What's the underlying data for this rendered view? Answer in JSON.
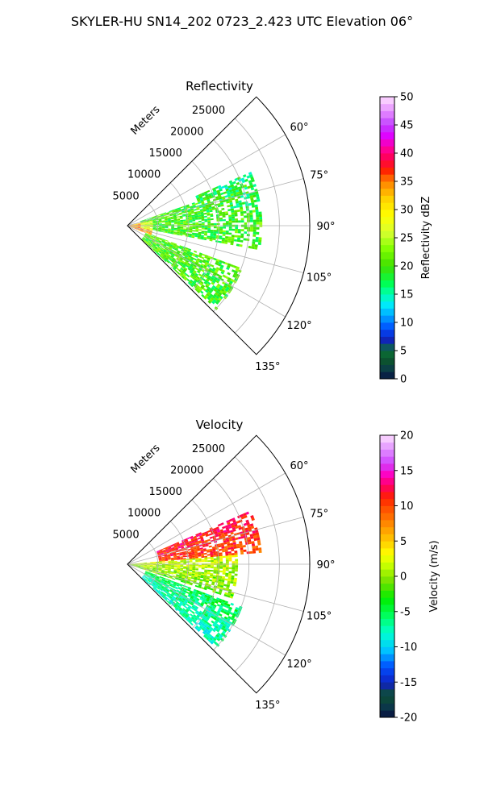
{
  "figure_title": "SKYLER-HU  SN14_202  0723_2.423 UTC Elevation 06°",
  "colors": {
    "background": "#ffffff",
    "grid": "#b0b0b0",
    "frame": "#000000"
  },
  "chart_data": [
    {
      "type": "heatmap",
      "projection": "polar-sector",
      "title": "Reflectivity",
      "radial_label": "Meters",
      "range_ticks": [
        5000,
        10000,
        15000,
        20000,
        25000
      ],
      "range_limit": [
        0,
        30000
      ],
      "azimuth_ticks": [
        "60°",
        "75°",
        "90°",
        "105°",
        "120°",
        "135°"
      ],
      "azimuth_range_deg": [
        45,
        135
      ],
      "grid": true,
      "colorbar": {
        "label": "Reflectivity dBZ",
        "range": [
          0,
          50
        ],
        "ticks": [
          0,
          5,
          10,
          15,
          20,
          25,
          30,
          35,
          40,
          45,
          50
        ],
        "colormap": "pyart_NWSRef"
      },
      "regions": [
        {
          "description": "main echo band",
          "az_deg": [
            70,
            100
          ],
          "range_m": [
            2000,
            22000
          ],
          "value_dbz": 20
        },
        {
          "description": "northern edge band",
          "az_deg": [
            66,
            80
          ],
          "range_m": [
            12000,
            22000
          ],
          "value_dbz": 17
        },
        {
          "description": "southern arm",
          "az_deg": [
            110,
            133
          ],
          "range_m": [
            3000,
            20000
          ],
          "value_dbz": 20
        },
        {
          "description": "near-radar strong echo",
          "az_deg": [
            78,
            112
          ],
          "range_m": [
            0,
            4000
          ],
          "value_dbz": 34
        }
      ]
    },
    {
      "type": "heatmap",
      "projection": "polar-sector",
      "title": "Velocity",
      "radial_label": "Meters",
      "range_ticks": [
        5000,
        10000,
        15000,
        20000,
        25000
      ],
      "range_limit": [
        0,
        30000
      ],
      "azimuth_ticks": [
        "60°",
        "75°",
        "90°",
        "105°",
        "120°",
        "135°"
      ],
      "azimuth_range_deg": [
        45,
        135
      ],
      "grid": true,
      "colorbar": {
        "label": "Velocity (m/s)",
        "range": [
          -20,
          20
        ],
        "ticks": [
          -20,
          -15,
          -10,
          -5,
          0,
          5,
          10,
          15,
          20
        ],
        "colormap": "pyart_BuDRd18"
      },
      "regions": [
        {
          "description": "receding flow north",
          "az_deg": [
            66,
            85
          ],
          "range_m": [
            5000,
            22000
          ],
          "value_ms": 9
        },
        {
          "description": "near-zero core",
          "az_deg": [
            85,
            108
          ],
          "range_m": [
            0,
            18000
          ],
          "value_ms": 1
        },
        {
          "description": "southern arm",
          "az_deg": [
            110,
            133
          ],
          "range_m": [
            3000,
            20000
          ],
          "value_ms": -3
        }
      ]
    }
  ]
}
